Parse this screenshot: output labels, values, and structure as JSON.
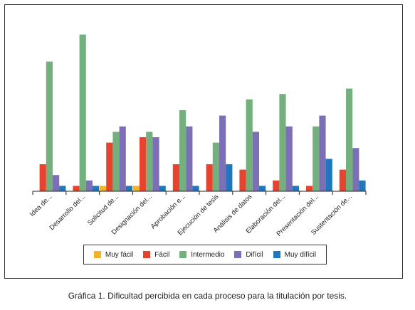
{
  "chart_data": {
    "type": "bar",
    "title": "",
    "xlabel": "",
    "ylabel": "",
    "categories": [
      "Idea de...",
      "Desarrollo del...",
      "Solicitud de...",
      "Designación del...",
      "Aprobación e...",
      "Ejecución de tesis",
      "Análisis de datos",
      "Elaboración del...",
      "Presentación del...",
      "Sustentación de..."
    ],
    "series": [
      {
        "name": "Muy fácil",
        "color": "#f3b429",
        "values": [
          0,
          0,
          1,
          1,
          0,
          0,
          0,
          0,
          0,
          0
        ]
      },
      {
        "name": "Fácil",
        "color": "#e8432f",
        "values": [
          5,
          1,
          9,
          10,
          5,
          5,
          4,
          2,
          1,
          4
        ]
      },
      {
        "name": "Intermedio",
        "color": "#73b07d",
        "values": [
          24,
          29,
          11,
          11,
          15,
          9,
          17,
          18,
          12,
          19
        ]
      },
      {
        "name": "Difícil",
        "color": "#7d6fb5",
        "values": [
          3,
          2,
          12,
          10,
          12,
          14,
          11,
          12,
          14,
          8
        ]
      },
      {
        "name": "Muy difícil",
        "color": "#1f77be",
        "values": [
          1,
          1,
          1,
          1,
          1,
          5,
          1,
          1,
          6,
          2
        ]
      }
    ],
    "ylim": [
      0,
      30
    ],
    "grid": false,
    "legend_position": "bottom"
  },
  "caption": "Gráfica 1. Dificultad percibida en cada proceso para la titulación por tesis."
}
